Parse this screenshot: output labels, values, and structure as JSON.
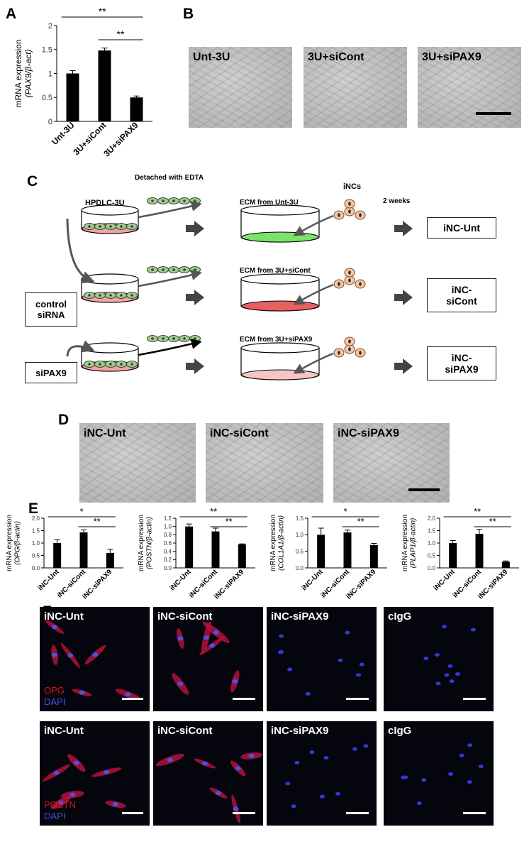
{
  "panels": {
    "A": "A",
    "B": "B",
    "C": "C",
    "D": "D",
    "E": "E",
    "F": "F"
  },
  "chart_data": [
    {
      "type": "bar",
      "panel": "A",
      "categories": [
        "Unt-3U",
        "3U+siCont",
        "3U+siPAX9"
      ],
      "values": [
        1.0,
        1.48,
        0.5
      ],
      "errors": [
        0.06,
        0.05,
        0.03
      ],
      "ylabel_line1": "mRNA expression",
      "ylabel_line2": "(PAX9/β-act)",
      "ylim": [
        0,
        2
      ],
      "yticks": [
        "0",
        "0.5",
        "1",
        "1.5",
        "2"
      ],
      "significance": [
        {
          "from": 0,
          "to": 2,
          "label": "**"
        },
        {
          "from": 1,
          "to": 2,
          "label": "**"
        }
      ]
    },
    {
      "type": "bar",
      "panel": "E1",
      "categories": [
        "iNC-Unt",
        "iNC-siCont",
        "iNC-siPAX9"
      ],
      "values": [
        1.0,
        1.43,
        0.6
      ],
      "errors": [
        0.13,
        0.1,
        0.15
      ],
      "ylabel_line1": "mRNA expression",
      "ylabel_line2": "(OPG/β-actin)",
      "ylim": [
        0,
        2
      ],
      "yticks": [
        "0.0",
        "0.5",
        "1.0",
        "1.5",
        "2.0"
      ],
      "significance": [
        {
          "from": 0,
          "to": 2,
          "label": "*"
        },
        {
          "from": 1,
          "to": 2,
          "label": "**"
        }
      ]
    },
    {
      "type": "bar",
      "panel": "E2",
      "categories": [
        "iNC-Unt",
        "iNC-siCont",
        "iNC-siPAX9"
      ],
      "values": [
        1.0,
        0.88,
        0.57
      ],
      "errors": [
        0.06,
        0.08,
        0.01
      ],
      "ylabel_line1": "mRNA expression",
      "ylabel_line2": "(POSTN/β-actin)",
      "ylim": [
        0,
        1.2
      ],
      "yticks": [
        "0.0",
        "0.2",
        "0.4",
        "0.6",
        "0.8",
        "1.0",
        "1.2"
      ],
      "significance": [
        {
          "from": 0,
          "to": 2,
          "label": "**"
        },
        {
          "from": 1,
          "to": 2,
          "label": "**"
        }
      ]
    },
    {
      "type": "bar",
      "panel": "E3",
      "categories": [
        "iNC-Unt",
        "iNC-siCont",
        "iNC-siPAX9"
      ],
      "values": [
        1.0,
        1.07,
        0.69
      ],
      "errors": [
        0.2,
        0.07,
        0.05
      ],
      "ylabel_line1": "mRNA expression",
      "ylabel_line2": "(COL1A1/β-actin)",
      "ylim": [
        0,
        1.5
      ],
      "yticks": [
        "0.0",
        "0.5",
        "1.0",
        "1.5"
      ],
      "significance": [
        {
          "from": 0,
          "to": 2,
          "label": "*"
        },
        {
          "from": 1,
          "to": 2,
          "label": "**"
        }
      ]
    },
    {
      "type": "bar",
      "panel": "E4",
      "categories": [
        "iNC-Unt",
        "iNC-siCont",
        "iNC-siPAX9"
      ],
      "values": [
        1.0,
        1.37,
        0.25
      ],
      "errors": [
        0.1,
        0.18,
        0.03
      ],
      "ylabel_line1": "mRNA expression",
      "ylabel_line2": "(PLAP1/β-actin)",
      "ylim": [
        0,
        2
      ],
      "yticks": [
        "0.0",
        "0.5",
        "1.0",
        "1.5",
        "2.0"
      ],
      "significance": [
        {
          "from": 0,
          "to": 2,
          "label": "**"
        },
        {
          "from": 1,
          "to": 2,
          "label": "**"
        }
      ]
    }
  ],
  "panelB": {
    "labels": [
      "Unt-3U",
      "3U+siCont",
      "3U+siPAX9"
    ]
  },
  "panelC": {
    "detached": "Detached with EDTA",
    "hpdlc": "HPDLC-3U",
    "incs": "iNCs",
    "weeks": "2 weeks",
    "ecm": [
      "ECM from Unt-3U",
      "ECM from 3U+siCont",
      "ECM from 3U+siPAX9"
    ],
    "ecm_colors": [
      "#7be36b",
      "#e86060",
      "#f7c5c5"
    ],
    "dish_color": "#f2a3a3",
    "cell_color": "#a7c79a",
    "inc_color": "#f3c6a5",
    "control_line1": "control",
    "control_line2": "siRNA",
    "sipax9": "siPAX9",
    "results": [
      [
        "iNC-Unt",
        ""
      ],
      [
        "iNC-",
        "siCont"
      ],
      [
        "iNC-",
        "siPAX9"
      ]
    ]
  },
  "panelD": {
    "labels": [
      "iNC-Unt",
      "iNC-siCont",
      "iNC-siPAX9"
    ]
  },
  "panelF": {
    "row1": [
      "iNC-Unt",
      "iNC-siCont",
      "iNC-siPAX9",
      "cIgG"
    ],
    "row2": [
      "iNC-Unt",
      "iNC-siCont",
      "iNC-siPAX9",
      "cIgG"
    ],
    "stain1": "OPG",
    "stain2": "POSTN",
    "dapi": "DAPI"
  }
}
